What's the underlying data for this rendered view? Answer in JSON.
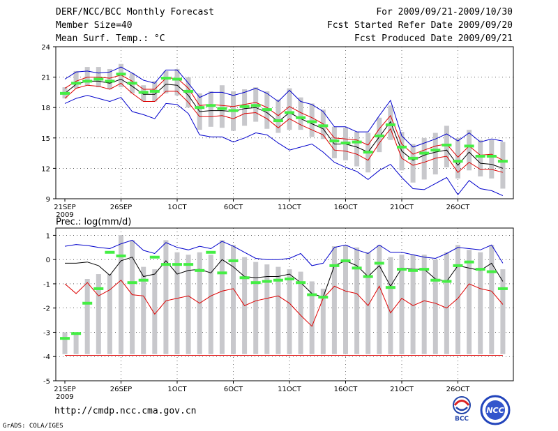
{
  "header": {
    "title": "DERF/NCC/BCC Monthly Forecast",
    "member_size": "Member Size=40",
    "variable": "Mean Surf. Temp.: °C",
    "period": "For 2009/09/21-2009/10/30",
    "refer_date": "Fcst Started Refer Date 2009/09/20",
    "produced_date": "Fcst Produced Date 2009/09/21"
  },
  "lower_title": "Prec.: log(mm/d)",
  "footer_url": "http://cmdp.ncc.cma.gov.cn",
  "grads_credit": "GrADS: COLA/IGES",
  "logos": {
    "bcc": "BCC",
    "ncc": "NCC"
  },
  "colors": {
    "max_min": "#0000cc",
    "spread": "#dd0000",
    "mean": "#000000",
    "obs_bar": "#c8c8cc",
    "member": "#44ee44"
  },
  "chart_data": [
    {
      "type": "line",
      "title": "Mean Surf. Temp.: °C",
      "xlabel": "",
      "ylabel": "°C",
      "x_tick_labels": [
        "21SEP",
        "26SEP",
        "1OCT",
        "6OCT",
        "11OCT",
        "16OCT",
        "21OCT",
        "26OCT"
      ],
      "x_year_label": "2009",
      "ylim": [
        9,
        24
      ],
      "yticks": [
        9,
        12,
        15,
        18,
        21,
        24
      ],
      "grid": true,
      "series": [
        {
          "name": "max",
          "color": "#0000cc",
          "values": [
            20.8,
            21.5,
            21.6,
            21.4,
            21.5,
            22.0,
            21.4,
            20.7,
            20.4,
            21.7,
            21.7,
            20.4,
            19.0,
            19.5,
            19.5,
            19.2,
            19.5,
            19.9,
            19.4,
            18.6,
            19.7,
            18.6,
            18.3,
            17.6,
            16.1,
            16.1,
            15.6,
            15.6,
            17.2,
            18.7,
            15.2,
            14.1,
            14.5,
            14.9,
            15.4,
            14.7,
            15.5,
            14.6,
            14.9,
            14.7
          ]
        },
        {
          "name": "mean_plus_sd",
          "color": "#dd0000",
          "values": [
            19.9,
            20.6,
            21.0,
            21.0,
            20.9,
            21.2,
            20.6,
            19.8,
            19.8,
            20.9,
            20.9,
            19.9,
            18.2,
            18.3,
            18.2,
            18.1,
            18.3,
            18.5,
            18.0,
            17.2,
            18.1,
            17.5,
            17.0,
            16.4,
            15.0,
            14.9,
            14.8,
            14.3,
            15.9,
            17.2,
            14.4,
            13.4,
            13.8,
            14.2,
            14.4,
            13.1,
            14.2,
            13.3,
            13.4,
            12.8
          ]
        },
        {
          "name": "mean",
          "color": "#000000",
          "values": [
            19.4,
            20.3,
            20.6,
            20.6,
            20.4,
            20.8,
            20.1,
            19.3,
            19.3,
            20.3,
            20.2,
            19.2,
            17.6,
            17.7,
            17.7,
            17.6,
            17.9,
            18.0,
            17.5,
            16.6,
            17.5,
            16.9,
            16.4,
            15.9,
            14.4,
            14.4,
            14.1,
            13.6,
            15.1,
            16.6,
            13.7,
            12.8,
            13.3,
            13.6,
            13.8,
            12.3,
            13.6,
            12.5,
            12.4,
            12.0
          ]
        },
        {
          "name": "mean_minus_sd",
          "color": "#dd0000",
          "values": [
            18.9,
            19.9,
            20.2,
            20.1,
            19.8,
            20.4,
            19.4,
            18.6,
            18.6,
            19.6,
            19.6,
            18.5,
            17.1,
            17.1,
            17.2,
            16.9,
            17.4,
            17.5,
            16.9,
            16.0,
            16.9,
            16.3,
            15.8,
            15.3,
            13.8,
            13.7,
            13.4,
            12.8,
            14.5,
            15.9,
            13.0,
            12.3,
            12.6,
            13.0,
            13.2,
            11.6,
            12.6,
            11.9,
            11.9,
            11.6
          ]
        },
        {
          "name": "min",
          "color": "#0000cc",
          "values": [
            18.4,
            18.9,
            19.2,
            18.9,
            18.6,
            19.0,
            17.6,
            17.3,
            16.9,
            18.4,
            18.3,
            17.4,
            15.3,
            15.1,
            15.1,
            14.6,
            15.0,
            15.5,
            15.3,
            14.5,
            13.8,
            14.1,
            14.4,
            13.6,
            12.6,
            12.1,
            11.7,
            10.9,
            11.8,
            12.4,
            11.1,
            10.0,
            9.9,
            10.5,
            11.1,
            9.4,
            10.8,
            10.0,
            9.8,
            9.3
          ]
        }
      ],
      "obs_range_bars": [
        [
          18.9,
          20.0
        ],
        [
          19.9,
          21.6
        ],
        [
          20.2,
          22.0
        ],
        [
          20.0,
          22.0
        ],
        [
          19.8,
          21.8
        ],
        [
          20.0,
          22.3
        ],
        [
          19.4,
          21.4
        ],
        [
          18.6,
          20.2
        ],
        [
          18.6,
          20.6
        ],
        [
          19.4,
          21.6
        ],
        [
          19.2,
          21.8
        ],
        [
          18.0,
          21.0
        ],
        [
          15.8,
          19.4
        ],
        [
          16.1,
          19.6
        ],
        [
          16.0,
          20.2
        ],
        [
          15.7,
          19.6
        ],
        [
          16.2,
          19.8
        ],
        [
          16.6,
          20.0
        ],
        [
          15.9,
          19.6
        ],
        [
          15.5,
          18.8
        ],
        [
          15.8,
          19.9
        ],
        [
          15.8,
          19.0
        ],
        [
          15.1,
          18.4
        ],
        [
          14.9,
          17.8
        ],
        [
          13.0,
          16.1
        ],
        [
          12.8,
          16.0
        ],
        [
          12.2,
          15.6
        ],
        [
          11.6,
          15.5
        ],
        [
          13.6,
          17.0
        ],
        [
          14.8,
          18.2
        ],
        [
          11.8,
          15.6
        ],
        [
          10.6,
          14.4
        ],
        [
          10.9,
          15.0
        ],
        [
          11.4,
          15.5
        ],
        [
          12.1,
          16.2
        ],
        [
          11.0,
          15.0
        ],
        [
          11.8,
          15.8
        ],
        [
          11.2,
          14.8
        ],
        [
          11.0,
          14.8
        ],
        [
          10.0,
          14.6
        ]
      ],
      "member_markers": [
        19.4,
        20.4,
        20.6,
        20.8,
        20.6,
        21.3,
        20.4,
        19.5,
        19.6,
        20.9,
        20.8,
        19.6,
        18.0,
        18.2,
        17.9,
        17.7,
        18.1,
        18.2,
        17.8,
        16.7,
        17.5,
        17.0,
        16.6,
        16.2,
        14.7,
        14.5,
        14.6,
        13.6,
        15.2,
        16.3,
        14.1,
        13.0,
        13.5,
        13.8,
        14.3,
        12.7,
        14.2,
        13.2,
        13.2,
        12.7
      ]
    },
    {
      "type": "line",
      "title": "Prec.: log(mm/d)",
      "xlabel": "",
      "ylabel": "log(mm/d)",
      "x_tick_labels": [
        "21SEP",
        "26SEP",
        "1OCT",
        "6OCT",
        "11OCT",
        "16OCT",
        "21OCT",
        "26OCT"
      ],
      "x_year_label": "2009",
      "ylim": [
        -5,
        1.3
      ],
      "yticks": [
        -5,
        -4,
        -3,
        -2,
        -1,
        0,
        1
      ],
      "grid": true,
      "series": [
        {
          "name": "max",
          "color": "#0000cc",
          "values": [
            0.55,
            0.62,
            0.58,
            0.5,
            0.45,
            0.65,
            0.8,
            0.38,
            0.25,
            0.7,
            0.5,
            0.4,
            0.55,
            0.45,
            0.75,
            0.55,
            0.3,
            0.05,
            0.0,
            0.0,
            0.05,
            0.25,
            -0.25,
            -0.15,
            0.5,
            0.6,
            0.4,
            0.25,
            0.6,
            0.3,
            0.3,
            0.2,
            0.1,
            0.05,
            0.25,
            0.5,
            0.45,
            0.4,
            0.6,
            -0.15
          ]
        },
        {
          "name": "mean",
          "color": "#000000",
          "values": [
            -0.15,
            -0.15,
            -0.1,
            -0.25,
            -0.65,
            -0.05,
            0.1,
            -0.7,
            -0.6,
            -0.05,
            -0.6,
            -0.45,
            -0.4,
            -0.55,
            0.0,
            -0.3,
            -0.7,
            -0.75,
            -0.7,
            -0.7,
            -0.6,
            -0.95,
            -1.4,
            -1.55,
            -0.25,
            -0.05,
            -0.25,
            -0.7,
            -0.25,
            -1.1,
            -0.35,
            -0.4,
            -0.4,
            -0.8,
            -0.9,
            -0.25,
            -0.35,
            -0.45,
            -0.15,
            -0.9
          ]
        },
        {
          "name": "min",
          "color": "#dd0000",
          "values": [
            -1.0,
            -1.4,
            -0.95,
            -1.5,
            -1.25,
            -0.85,
            -1.45,
            -1.5,
            -2.25,
            -1.7,
            -1.6,
            -1.5,
            -1.8,
            -1.5,
            -1.3,
            -1.2,
            -1.9,
            -1.7,
            -1.6,
            -1.5,
            -1.8,
            -2.3,
            -2.75,
            -1.6,
            -1.1,
            -1.3,
            -1.4,
            -1.9,
            -1.1,
            -2.2,
            -1.6,
            -1.9,
            -1.7,
            -1.8,
            -2.0,
            -1.6,
            -1.0,
            -1.2,
            -1.3,
            -1.85
          ]
        }
      ],
      "obs_range_bars": [
        [
          -3.9,
          -3.0
        ],
        [
          -3.9,
          -3.0
        ],
        [
          -3.9,
          -0.8
        ],
        [
          -3.9,
          -0.6
        ],
        [
          -3.9,
          -0.6
        ],
        [
          -3.9,
          1.0
        ],
        [
          -3.9,
          0.8
        ],
        [
          -3.9,
          -0.3
        ],
        [
          -3.9,
          -0.4
        ],
        [
          -3.9,
          0.8
        ],
        [
          -3.9,
          0.3
        ],
        [
          -3.9,
          0.2
        ],
        [
          -3.9,
          0.3
        ],
        [
          -3.9,
          0.2
        ],
        [
          -3.9,
          0.8
        ],
        [
          -3.9,
          0.6
        ],
        [
          -3.9,
          0.1
        ],
        [
          -3.9,
          -0.1
        ],
        [
          -3.9,
          -0.2
        ],
        [
          -3.9,
          -0.3
        ],
        [
          -3.9,
          -0.4
        ],
        [
          -3.9,
          -0.5
        ],
        [
          -3.9,
          -0.9
        ],
        [
          -3.9,
          -1.2
        ],
        [
          -3.9,
          0.55
        ],
        [
          -3.9,
          0.6
        ],
        [
          -3.9,
          0.5
        ],
        [
          -3.9,
          0.3
        ],
        [
          -3.9,
          0.6
        ],
        [
          -3.9,
          0.1
        ],
        [
          -3.9,
          0.2
        ],
        [
          -3.9,
          0.2
        ],
        [
          -3.9,
          0.2
        ],
        [
          -3.9,
          0.0
        ],
        [
          -3.9,
          0.3
        ],
        [
          -3.9,
          0.6
        ],
        [
          -3.9,
          0.4
        ],
        [
          -3.9,
          0.3
        ],
        [
          -3.9,
          0.6
        ],
        [
          -3.9,
          -0.4
        ]
      ],
      "member_markers": [
        -3.25,
        -3.05,
        -1.8,
        -1.2,
        0.3,
        0.15,
        -0.95,
        -0.85,
        0.1,
        -0.2,
        -0.2,
        -0.2,
        -0.45,
        0.3,
        -0.55,
        -0.05,
        -0.75,
        -0.95,
        -0.9,
        -0.85,
        -0.8,
        -0.95,
        -1.45,
        -1.55,
        -0.25,
        -0.05,
        -0.35,
        -0.7,
        -0.15,
        -1.15,
        -0.4,
        -0.45,
        -0.4,
        -0.85,
        -0.9,
        -0.25,
        -0.1,
        -0.4,
        -0.5,
        -1.2
      ],
      "reference_line": {
        "value": -3.95,
        "color": "#dd0000"
      }
    }
  ]
}
